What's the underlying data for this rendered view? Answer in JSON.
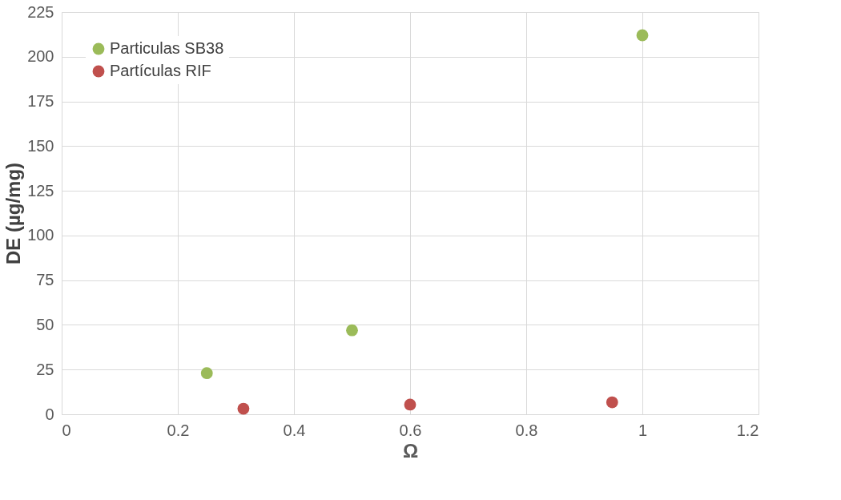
{
  "chart_data": {
    "type": "scatter",
    "xlabel": "Ω",
    "ylabel": "DE    (µg/mg)",
    "series": [
      {
        "name": "Particulas SB38",
        "color": "#9bbb59",
        "x": [
          0.25,
          0.5,
          1.0
        ],
        "values": [
          23,
          47,
          212
        ]
      },
      {
        "name": "Partículas RIF",
        "color": "#c0504d",
        "x": [
          0.313,
          0.6,
          0.948
        ],
        "values": [
          3.1,
          5.4,
          6.7
        ]
      }
    ],
    "xlim": [
      0,
      1.2
    ],
    "xticks": [
      0,
      0.2,
      0.4,
      0.6,
      0.8,
      1,
      1.2
    ],
    "ylim": [
      0,
      225
    ],
    "yticks": [
      0,
      25,
      50,
      75,
      100,
      125,
      150,
      175,
      200,
      225
    ],
    "grid": true,
    "legend": "top left",
    "marker": "circle"
  }
}
